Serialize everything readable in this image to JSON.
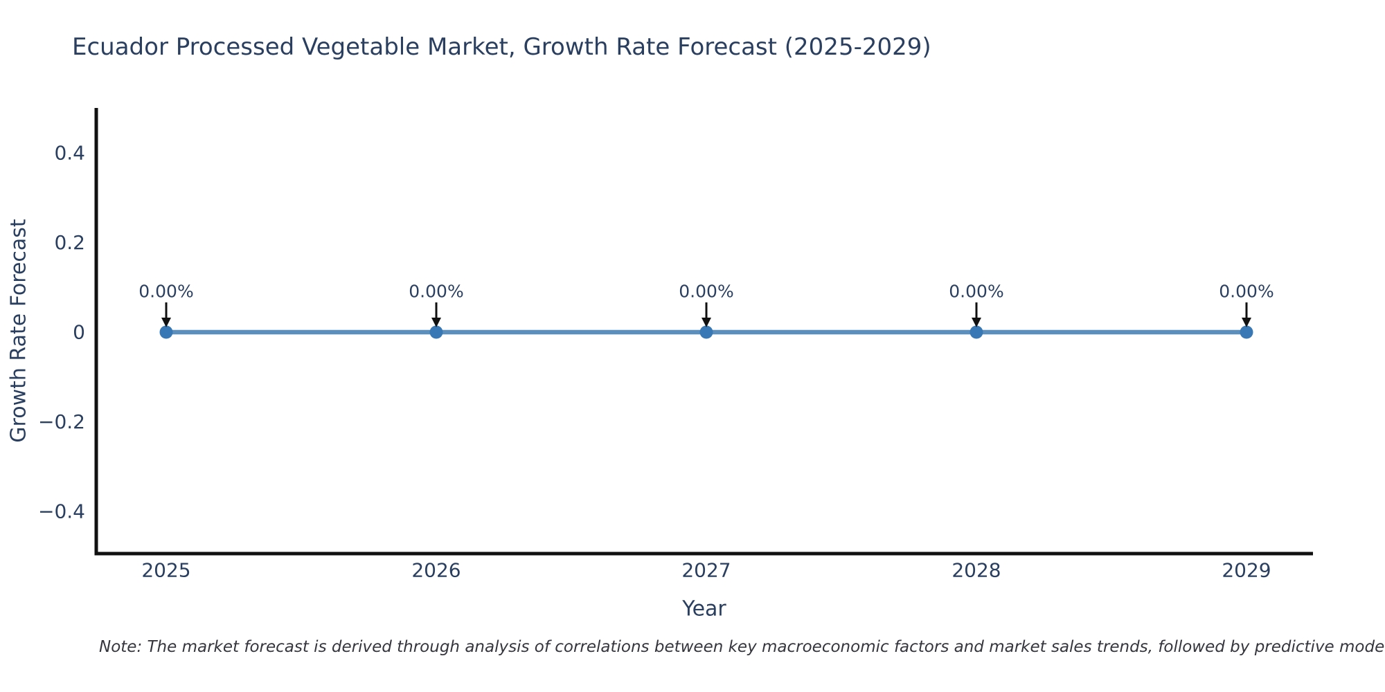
{
  "chart": {
    "title": "Ecuador Processed Vegetable Market, Growth Rate Forecast (2025-2029)",
    "xlabel": "Year",
    "ylabel": "Growth Rate Forecast"
  },
  "note": {
    "text": "Note: The market forecast is derived through analysis of correlations between key macroeconomic factors and market sales trends, followed by predictive modeling to project future sa"
  },
  "chart_data": {
    "type": "line",
    "title": "Ecuador Processed Vegetable Market, Growth Rate Forecast (2025-2029)",
    "xlabel": "Year",
    "ylabel": "Growth Rate Forecast",
    "x": [
      2025,
      2026,
      2027,
      2028,
      2029
    ],
    "series": [
      {
        "name": "Growth Rate Forecast",
        "values": [
          0,
          0,
          0,
          0,
          0
        ]
      }
    ],
    "point_labels": [
      "0.00%",
      "0.00%",
      "0.00%",
      "0.00%",
      "0.00%"
    ],
    "xtick_labels": [
      "2025",
      "2026",
      "2027",
      "2028",
      "2029"
    ],
    "ytick_values": [
      0.4,
      0.2,
      0,
      -0.2,
      -0.4
    ],
    "ytick_labels": [
      "0.4",
      "0.2",
      "0",
      "−0.2",
      "−0.4"
    ],
    "xlim": [
      2024.74,
      2029.25
    ],
    "ylim": [
      -0.5,
      0.5
    ],
    "grid": false,
    "legend": false,
    "colors": {
      "line": "#5b8fbe",
      "marker": "#3878b4",
      "axis": "#111111",
      "text": "#2a3f5f",
      "arrow": "#111111",
      "background": "#ffffff"
    }
  }
}
